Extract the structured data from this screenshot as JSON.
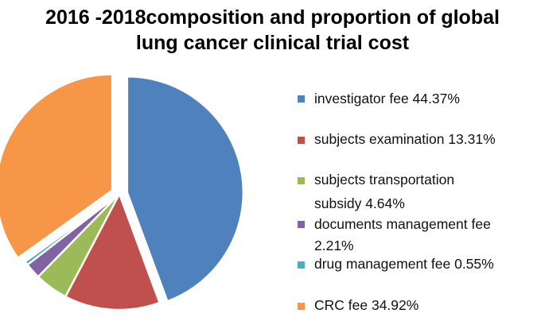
{
  "chart_data": {
    "type": "pie",
    "title_lines": [
      "2016 -2018composition and proportion of global",
      "lung cancer clinical trial cost"
    ],
    "slices": [
      {
        "name": "investigator fee",
        "value": 44.37,
        "color": "#4f81bd",
        "legend_lines": [
          " investigator fee  44.37%"
        ]
      },
      {
        "name": "subjects examination",
        "value": 13.31,
        "color": "#c0504d",
        "legend_lines": [
          "subjects examination 13.31%"
        ]
      },
      {
        "name": "subjects transportation subsidy",
        "value": 4.64,
        "color": "#9bbb59",
        "legend_lines": [
          "subjects transportation",
          "subsidy 4.64%"
        ]
      },
      {
        "name": "documents management fee",
        "value": 2.21,
        "color": "#8064a2",
        "legend_lines": [
          "documents management fee",
          "2.21%"
        ]
      },
      {
        "name": "drug management fee",
        "value": 0.55,
        "color": "#4bacc6",
        "legend_lines": [
          "drug management fee 0.55%"
        ]
      },
      {
        "name": "CRC fee",
        "value": 34.92,
        "color": "#f79646",
        "legend_lines": [
          "CRC fee  34.92%"
        ]
      }
    ],
    "exploded": [
      "investigator fee",
      "CRC fee"
    ],
    "start_angle": "top",
    "direction": "clockwise",
    "legend_position": "right"
  }
}
